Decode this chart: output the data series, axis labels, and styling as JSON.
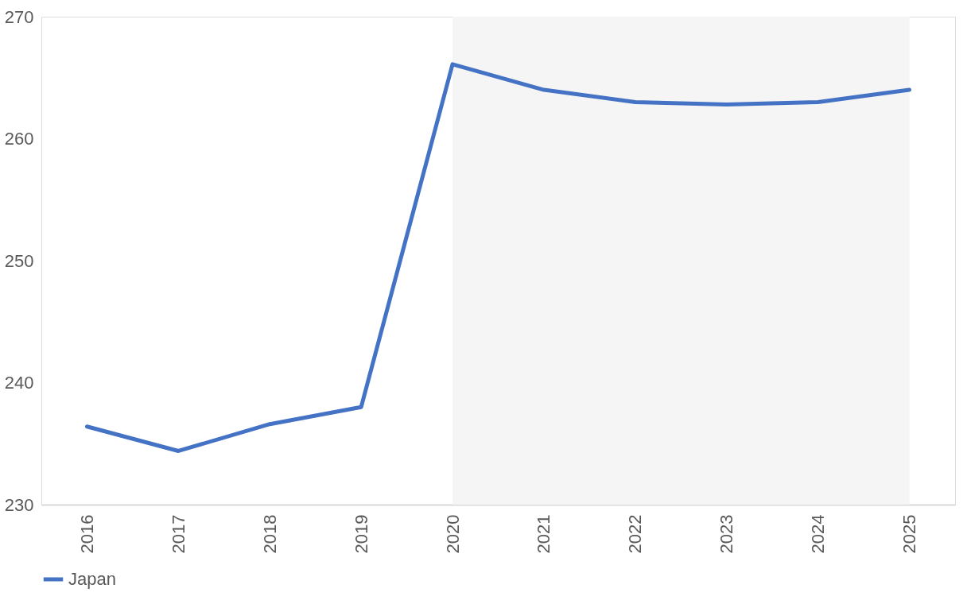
{
  "chart_data": {
    "type": "line",
    "categories": [
      "2016",
      "2017",
      "2018",
      "2019",
      "2020",
      "2021",
      "2022",
      "2023",
      "2024",
      "2025"
    ],
    "series": [
      {
        "name": "Japan",
        "color": "#4472c4",
        "values": [
          236.4,
          234.4,
          236.6,
          238.0,
          266.1,
          264.0,
          263.0,
          262.8,
          263.0,
          264.0
        ]
      }
    ],
    "ylim": [
      230,
      270
    ],
    "yticks": [
      230,
      240,
      250,
      260,
      270
    ],
    "bands": [
      {
        "axis": "x",
        "from": "2020",
        "to": "2025",
        "color": "#f5f5f5"
      }
    ],
    "grid": false,
    "legend": "bottom",
    "marker": "none",
    "line_style": "solid"
  }
}
